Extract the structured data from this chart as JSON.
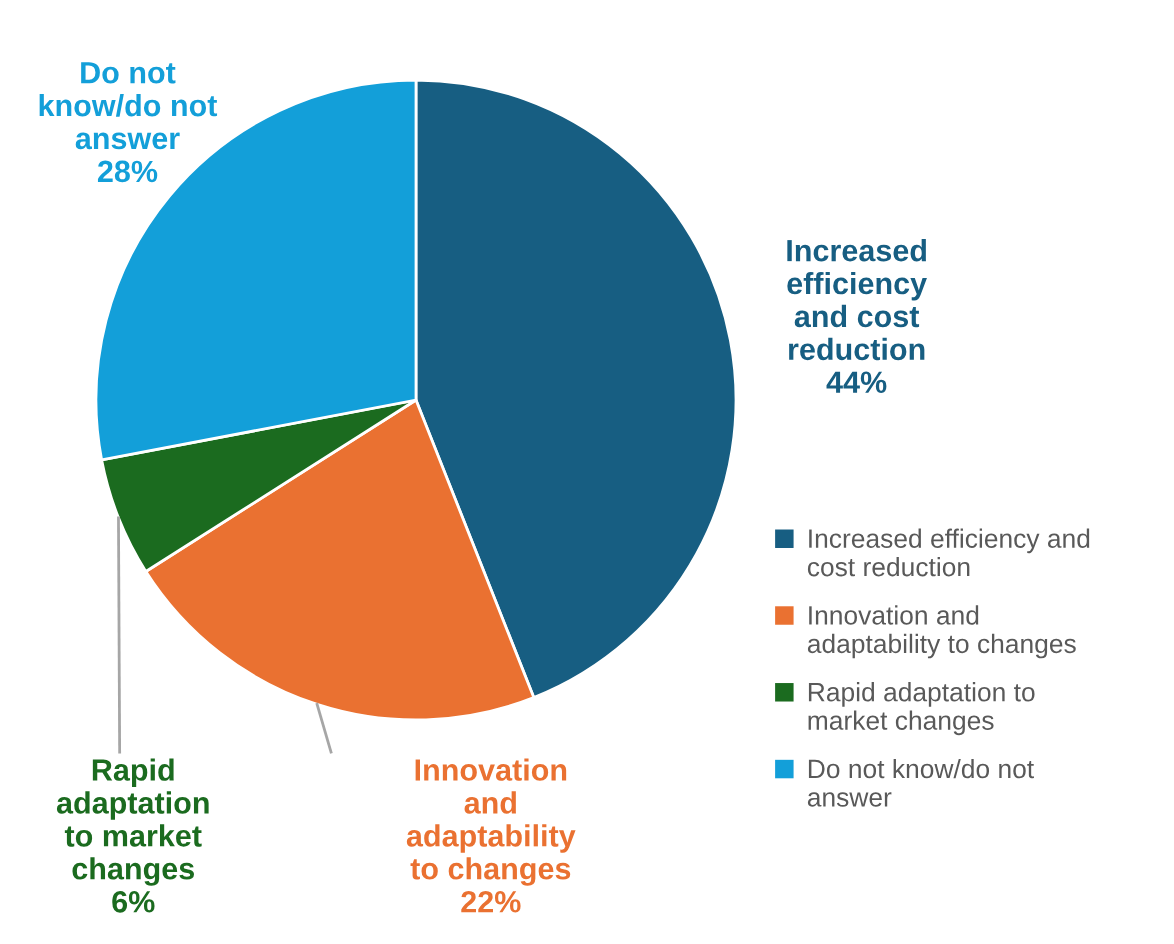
{
  "chart_data": {
    "type": "pie",
    "categories": [
      "Increased efficiency and cost reduction",
      "Innovation and adaptability to changes",
      "Rapid adaptation to market changes",
      "Do not know/do not answer"
    ],
    "values": [
      44,
      22,
      6,
      28
    ],
    "colors": [
      "#175e82",
      "#ea7131",
      "#1b6b1f",
      "#139fd9"
    ],
    "value_labels": [
      "44%",
      "22%",
      "6%",
      "28%"
    ],
    "legend": "right"
  }
}
